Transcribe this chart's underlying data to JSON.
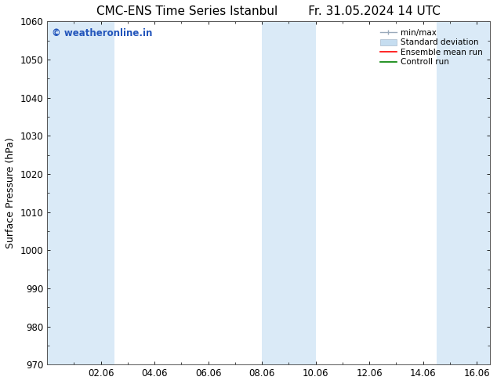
{
  "title_left": "CMC-ENS Time Series Istanbul",
  "title_right": "Fr. 31.05.2024 14 UTC",
  "ylabel": "Surface Pressure (hPa)",
  "ylim": [
    970,
    1060
  ],
  "yticks": [
    970,
    980,
    990,
    1000,
    1010,
    1020,
    1030,
    1040,
    1050,
    1060
  ],
  "xlim_start": 0,
  "xlim_end": 16.5,
  "xtick_labels": [
    "02.06",
    "04.06",
    "06.06",
    "08.06",
    "10.06",
    "12.06",
    "14.06",
    "16.06"
  ],
  "xtick_positions": [
    2,
    4,
    6,
    8,
    10,
    12,
    14,
    16
  ],
  "shaded_bands": [
    {
      "x_start": 0.0,
      "x_end": 2.5
    },
    {
      "x_start": 8.0,
      "x_end": 10.0
    },
    {
      "x_start": 14.5,
      "x_end": 16.5
    }
  ],
  "band_color": "#daeaf7",
  "watermark_text": "© weatheronline.in",
  "watermark_color": "#2255bb",
  "legend_labels": [
    "min/max",
    "Standard deviation",
    "Ensemble mean run",
    "Controll run"
  ],
  "legend_colors": [
    "#aabbcc",
    "#c5ddf0",
    "red",
    "green"
  ],
  "bg_color": "#ffffff",
  "title_fontsize": 11,
  "axis_label_fontsize": 9,
  "tick_fontsize": 8.5
}
